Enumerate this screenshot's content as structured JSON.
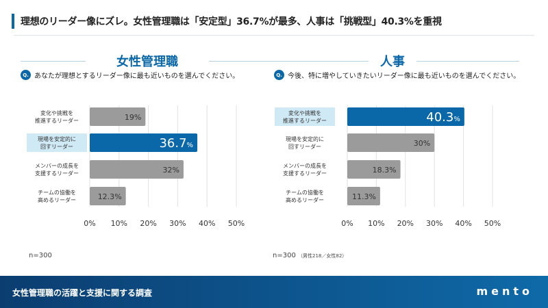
{
  "header": {
    "title": "理想のリーダー像にズレ。女性管理職は「安定型」36.7%が最多、人事は「挑戦型」40.3%を重視"
  },
  "footer": {
    "title": "女性管理職の活躍と支援に関する調査",
    "logo": "mento"
  },
  "colors": {
    "accent": "#0a67a8",
    "bar_default": "#9b9b9b",
    "highlight_label_bg": "#cfe9f5"
  },
  "panels": [
    {
      "heading": "女性管理職",
      "q_icon": "Q.",
      "question": "あなたが理想とするリーダー像に最も近いものを選んでください。",
      "n": "n=300",
      "n_note": ""
    },
    {
      "heading": "人事",
      "q_icon": "Q.",
      "question": "今後、特に増やしていきたいリーダー像に最も近いものを選んでください。",
      "n": "n=300",
      "n_note": "（男性218／女性82）"
    }
  ],
  "chart_data": [
    {
      "type": "bar",
      "orientation": "horizontal",
      "categories": [
        "変化や挑戦を\n推進するリーダー",
        "現場を安定的に\n回すリーダー",
        "メンバーの成長を\n支援するリーダー",
        "チームの協働を\n高めるリーダー"
      ],
      "values": [
        19,
        36.7,
        32,
        12.3
      ],
      "highlight_index": 1,
      "xlim": [
        0,
        50
      ],
      "xticks": [
        "0%",
        "10%",
        "20%",
        "30%",
        "40%",
        "50%"
      ],
      "grid": true
    },
    {
      "type": "bar",
      "orientation": "horizontal",
      "categories": [
        "変化や挑戦を\n推進するリーダー",
        "現場を安定的に\n回すリーダー",
        "メンバーの成長を\n支援するリーダー",
        "チームの協働を\n高めるリーダー"
      ],
      "values": [
        40.3,
        30,
        18.3,
        11.3
      ],
      "highlight_index": 0,
      "xlim": [
        0,
        50
      ],
      "xticks": [
        "0%",
        "10%",
        "20%",
        "30%",
        "40%",
        "50%"
      ],
      "grid": true
    }
  ]
}
